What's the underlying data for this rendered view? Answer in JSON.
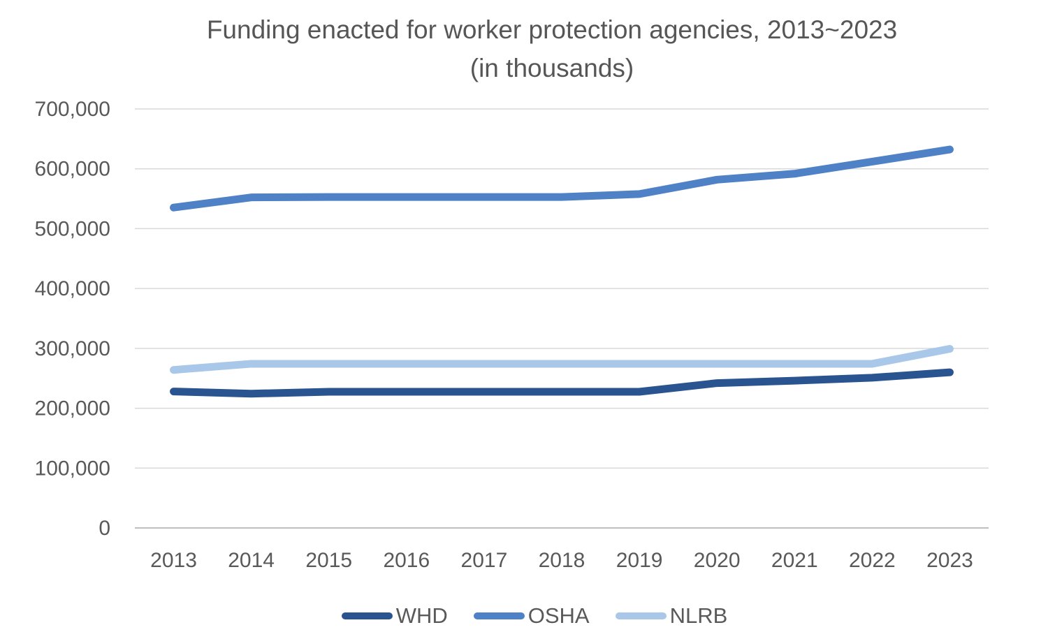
{
  "chart_data": {
    "type": "line",
    "title": "Funding enacted for worker protection agencies, 2013~2023",
    "subtitle": "(in thousands)",
    "categories": [
      "2013",
      "2014",
      "2015",
      "2016",
      "2017",
      "2018",
      "2019",
      "2020",
      "2021",
      "2022",
      "2023"
    ],
    "series": [
      {
        "name": "WHD",
        "color": "#2A5490",
        "values": [
          228000,
          224330,
          227500,
          227500,
          227500,
          227500,
          227500,
          242000,
          246000,
          251000,
          260000
        ]
      },
      {
        "name": "OSHA",
        "color": "#4E81C6",
        "values": [
          535246,
          552247,
          552787,
          552787,
          552787,
          552787,
          557787,
          581787,
          591787,
          612000,
          632309
        ]
      },
      {
        "name": "NLRB",
        "color": "#A9C7E8",
        "values": [
          264000,
          274224,
          274224,
          274224,
          274224,
          274224,
          274224,
          274224,
          274224,
          274224,
          299224
        ]
      }
    ],
    "ylim": [
      0,
      700000
    ],
    "yticks": [
      0,
      100000,
      200000,
      300000,
      400000,
      500000,
      600000,
      700000
    ],
    "ytick_labels": [
      "0",
      "100,000",
      "200,000",
      "300,000",
      "400,000",
      "500,000",
      "600,000",
      "700,000"
    ],
    "xlabel": "",
    "ylabel": "",
    "grid": "horizontal",
    "legend_position": "bottom",
    "colors": {
      "text": "#595959",
      "title_text": "#565656",
      "gridline": "#D9D9D9",
      "axis_line": "#BFBFBF",
      "background": "#FFFFFF"
    }
  }
}
